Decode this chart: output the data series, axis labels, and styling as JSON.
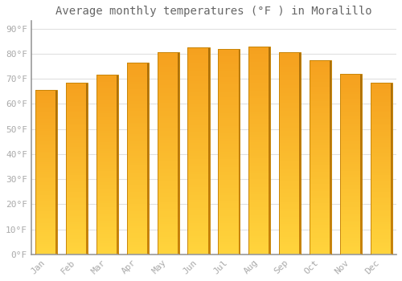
{
  "title": "Average monthly temperatures (°F ) in Moralillo",
  "months": [
    "Jan",
    "Feb",
    "Mar",
    "Apr",
    "May",
    "Jun",
    "Jul",
    "Aug",
    "Sep",
    "Oct",
    "Nov",
    "Dec"
  ],
  "values": [
    65.5,
    68.5,
    71.5,
    76.5,
    80.5,
    82.5,
    82.0,
    83.0,
    80.5,
    77.5,
    72.0,
    68.5
  ],
  "bar_color_top": "#F5A623",
  "bar_color_bottom": "#FFD44D",
  "bar_edge_color": "#C8860A",
  "background_color": "#ffffff",
  "grid_color": "#e0e0e0",
  "title_fontsize": 10,
  "tick_fontsize": 8,
  "ytick_labels": [
    "0°F",
    "10°F",
    "20°F",
    "30°F",
    "40°F",
    "50°F",
    "60°F",
    "70°F",
    "80°F",
    "90°F"
  ],
  "ytick_values": [
    0,
    10,
    20,
    30,
    40,
    50,
    60,
    70,
    80,
    90
  ],
  "ylim": [
    0,
    93
  ],
  "text_color": "#aaaaaa",
  "bar_width": 0.72
}
